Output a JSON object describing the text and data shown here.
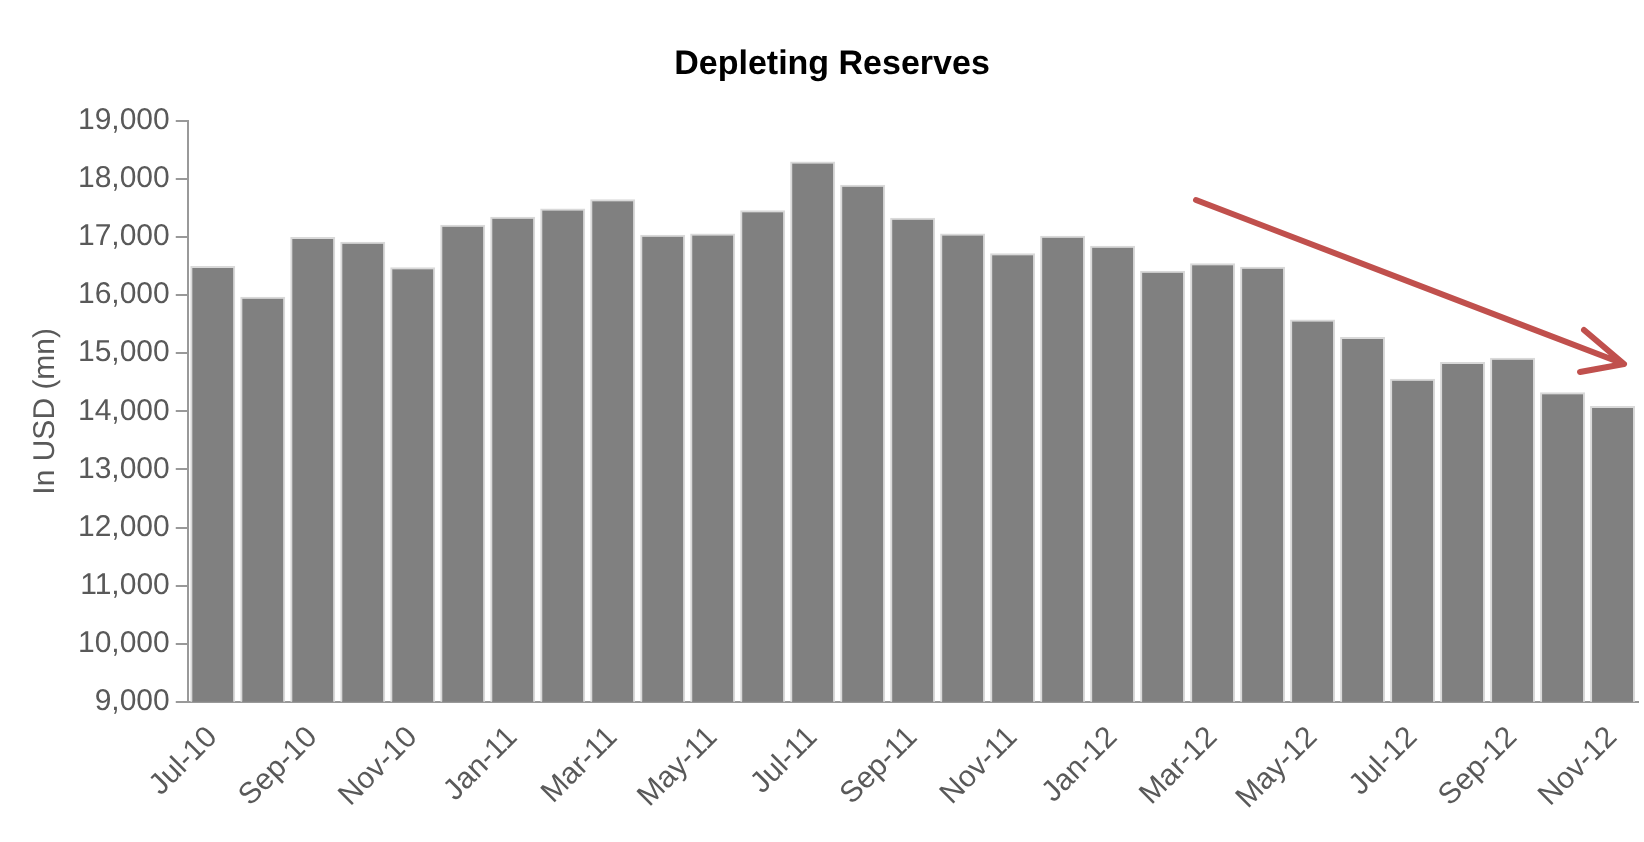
{
  "chart_data": {
    "type": "bar",
    "title": "Depleting Reserves",
    "ylabel": "In USD (mn)",
    "categories": [
      "Jul-10",
      null,
      "Sep-10",
      null,
      "Nov-10",
      null,
      "Jan-11",
      null,
      "Mar-11",
      null,
      "May-11",
      null,
      "Jul-11",
      null,
      "Sep-11",
      null,
      "Nov-11",
      null,
      "Jan-12",
      null,
      "Mar-12",
      null,
      "May-12",
      null,
      "Jul-12",
      null,
      "Sep-12",
      null,
      "Nov-12"
    ],
    "values": [
      16500,
      15970,
      17000,
      16920,
      16480,
      17210,
      17350,
      17490,
      17650,
      17040,
      17060,
      17460,
      18300,
      17900,
      17330,
      17060,
      16720,
      17020,
      16850,
      16420,
      16550,
      16490,
      15580,
      15280,
      14560,
      14850,
      14920,
      14330,
      14090
    ],
    "color": "#808080",
    "ylim": [
      9000,
      19000
    ],
    "yticks": [
      {
        "value": 9000,
        "label": "9,000"
      },
      {
        "value": 10000,
        "label": "10,000"
      },
      {
        "value": 11000,
        "label": "11,000"
      },
      {
        "value": 12000,
        "label": "12,000"
      },
      {
        "value": 13000,
        "label": "13,000"
      },
      {
        "value": 14000,
        "label": "14,000"
      },
      {
        "value": 15000,
        "label": "15,000"
      },
      {
        "value": 16000,
        "label": "16,000"
      },
      {
        "value": 17000,
        "label": "17,000"
      },
      {
        "value": 18000,
        "label": "18,000"
      },
      {
        "value": 19000,
        "label": "19,000"
      }
    ],
    "grid": false,
    "legend": false
  }
}
